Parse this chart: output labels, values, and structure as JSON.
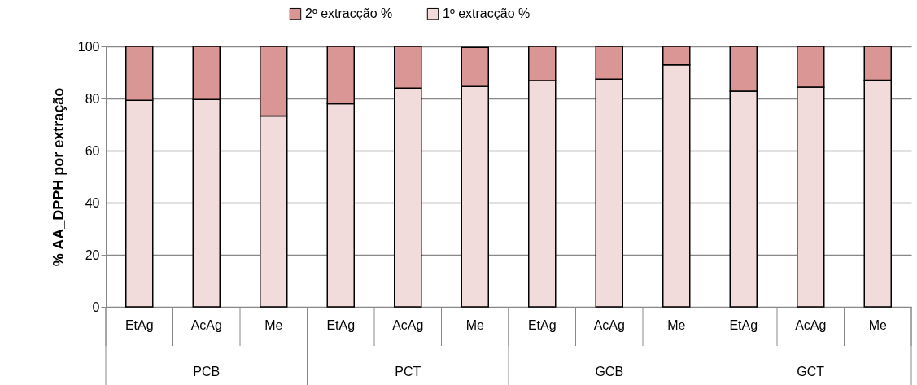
{
  "chart_data": {
    "type": "bar",
    "stacked": true,
    "ylabel": "% AA_DPPH por extração",
    "categories": [
      "EtAg",
      "AcAg",
      "Me",
      "EtAg",
      "AcAg",
      "Me",
      "EtAg",
      "AcAg",
      "Me",
      "EtAg",
      "AcAg",
      "Me"
    ],
    "series": [
      {
        "name": "1º extracção %",
        "color": "#f2dcdb",
        "values": [
          79.3,
          79.6,
          73.3,
          78,
          84,
          84.6,
          86.9,
          87.4,
          92.9,
          82.8,
          84.4,
          87
        ]
      },
      {
        "name": "2º extracção %",
        "color": "#d99694",
        "values": [
          20.7,
          20.4,
          26.7,
          22,
          16,
          15,
          13.1,
          12.6,
          7.1,
          17.2,
          15.6,
          13
        ]
      }
    ],
    "ylim": [
      0,
      100
    ],
    "yticks": [
      0,
      20,
      40,
      60,
      80,
      100
    ],
    "grid": "y",
    "legend": "top",
    "annotations": [
      "PCB",
      "PCT",
      "GCB",
      "GCT"
    ]
  }
}
